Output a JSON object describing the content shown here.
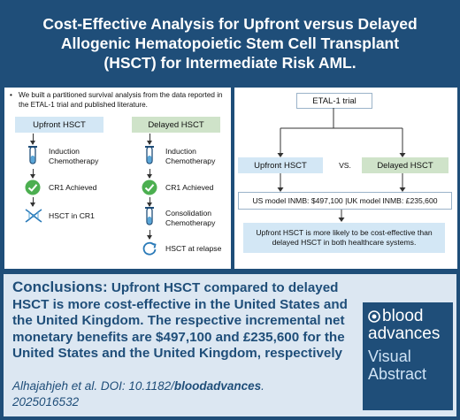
{
  "title": {
    "line1": "Cost-Effective Analysis for Upfront versus Delayed",
    "line2": "Allogenic Hematopoietic Stem Cell Transplant",
    "line3": "(HSCT) for Intermediate Risk AML."
  },
  "left_panel": {
    "bullet": "•",
    "note": "We built a partitioned survival analysis from the data reported in the ETAL-1 trial and published literature.",
    "upfront": {
      "header": "Upfront HSCT",
      "steps": [
        "Induction Chemotherapy",
        "CR1 Achieved",
        "HSCT in CR1"
      ],
      "icons": [
        "test-tube-icon",
        "checkmark-icon",
        "dna-icon"
      ]
    },
    "delayed": {
      "header": "Delayed HSCT",
      "steps": [
        "Induction Chemotherapy",
        "CR1 Achieved",
        "Consolidation Chemotherapy",
        "HSCT at relapse"
      ],
      "icons": [
        "test-tube-icon",
        "checkmark-icon",
        "test-tube-icon",
        "relapse-cycle-icon"
      ]
    }
  },
  "right_panel": {
    "trial": "ETAL-1 trial",
    "upfront": "Upfront HSCT",
    "vs": "VS.",
    "delayed": "Delayed HSCT",
    "inmb": "US model INMB: $497,100 |UK model INMB: £235,600",
    "result": "Upfront HSCT is more likely to be cost-effective than delayed HSCT in both healthcare systems."
  },
  "conclusions": {
    "label": "Conclusions:",
    "text": "Upfront HSCT compared to delayed HSCT is more cost-effective in the United States and the United Kingdom. The respective incremental net monetary benefits are $497,100 and £235,600 for the United States and the United Kingdom, respectively"
  },
  "citation": {
    "prefix": "Alhajahjeh et al. DOI: 10.1182/",
    "journal": "bloodadvances",
    "suffix": ".",
    "id": "2025016532"
  },
  "logo": {
    "line1": "blood",
    "line2": "advances",
    "line3": "Visual",
    "line4": "Abstract"
  },
  "colors": {
    "navy": "#1f4e79",
    "light_blue": "#d3e7f5",
    "light_green": "#cfe3c9",
    "check_green": "#4caf50"
  }
}
